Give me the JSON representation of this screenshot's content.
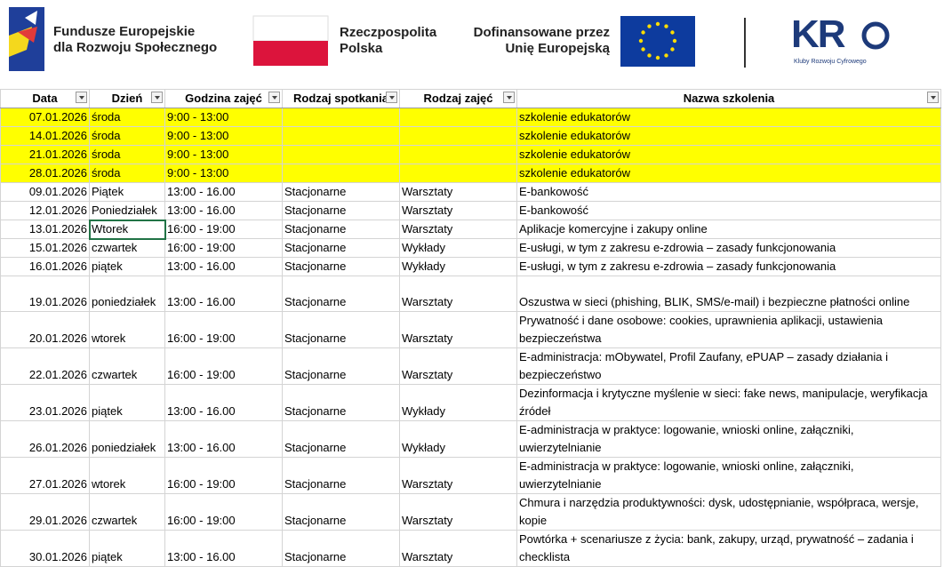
{
  "header": {
    "logos": [
      {
        "lines": [
          "Fundusze Europejskie",
          "dla Rozwoju Społecznego"
        ]
      },
      {
        "lines": [
          "Rzeczpospolita",
          "Polska"
        ]
      },
      {
        "lines": [
          "Dofinansowane przez",
          "Unię Europejską"
        ]
      },
      {
        "mark": "KR",
        "lines": [
          "Kluby Rozwoju Cyfrowego"
        ]
      }
    ]
  },
  "table": {
    "columns": [
      "Data",
      "Dzień",
      "Godzina zajęć",
      "Rodzaj spotkania",
      "Rodzaj zajęć",
      "Nazwa szkolenia"
    ],
    "highlight_color": "#ffff00",
    "highlighted_rows": [
      0,
      1,
      2,
      3
    ],
    "rows": [
      [
        "07.01.2026",
        "środa",
        "9:00 - 13:00",
        "",
        "",
        "szkolenie edukatorów"
      ],
      [
        "14.01.2026",
        "środa",
        "9:00 - 13:00",
        "",
        "",
        "szkolenie edukatorów"
      ],
      [
        "21.01.2026",
        "środa",
        "9:00 - 13:00",
        "",
        "",
        "szkolenie edukatorów"
      ],
      [
        "28.01.2026",
        "środa",
        "9:00 - 13:00",
        "",
        "",
        "szkolenie edukatorów"
      ],
      [
        "09.01.2026",
        "Piątek",
        "13:00 - 16.00",
        "Stacjonarne",
        "Warsztaty",
        "E-bankowość"
      ],
      [
        "12.01.2026",
        "Poniedziałek",
        "13:00 - 16.00",
        "Stacjonarne",
        "Warsztaty",
        "E-bankowość"
      ],
      [
        "13.01.2026",
        "Wtorek",
        "16:00 - 19:00",
        "Stacjonarne",
        "Warsztaty",
        "Aplikacje komercyjne i zakupy online"
      ],
      [
        "15.01.2026",
        "czwartek",
        "16:00 - 19:00",
        "Stacjonarne",
        "Wykłady",
        "E-usługi, w tym z zakresu e-zdrowia – zasady funkcjonowania"
      ],
      [
        "16.01.2026",
        "piątek",
        "13:00 - 16.00",
        "Stacjonarne",
        "Wykłady",
        "E-usługi, w tym z zakresu e-zdrowia – zasady funkcjonowania"
      ],
      [
        "19.01.2026",
        "poniedziałek",
        "13:00 - 16.00",
        "Stacjonarne",
        "Warsztaty",
        "Oszustwa w sieci (phishing, BLIK, SMS/e-mail) i bezpieczne płatności online"
      ],
      [
        "20.01.2026",
        "wtorek",
        "16:00 - 19:00",
        "Stacjonarne",
        "Warsztaty",
        "Prywatność i dane osobowe: cookies, uprawnienia aplikacji, ustawienia bezpieczeństwa"
      ],
      [
        "22.01.2026",
        "czwartek",
        "16:00 - 19:00",
        "Stacjonarne",
        "Warsztaty",
        "E-administracja: mObywatel, Profil Zaufany, ePUAP – zasady działania i bezpieczeństwo"
      ],
      [
        "23.01.2026",
        "piątek",
        "13:00 - 16.00",
        "Stacjonarne",
        "Wykłady",
        "Dezinformacja i krytyczne myślenie w sieci: fake news, manipulacje, weryfikacja źródeł"
      ],
      [
        "26.01.2026",
        "poniedziałek",
        "13:00 - 16.00",
        "Stacjonarne",
        "Wykłady",
        "E-administracja w praktyce: logowanie, wnioski online, załączniki, uwierzytelnianie"
      ],
      [
        "27.01.2026",
        "wtorek",
        "16:00 - 19:00",
        "Stacjonarne",
        "Warsztaty",
        "E-administracja w praktyce: logowanie, wnioski online, załączniki, uwierzytelnianie"
      ],
      [
        "29.01.2026",
        "czwartek",
        "16:00 - 19:00",
        "Stacjonarne",
        "Warsztaty",
        "Chmura i narzędzia produktywności: dysk, udostępnianie, współpraca, wersje, kopie"
      ],
      [
        "30.01.2026",
        "piątek",
        "13:00 - 16.00",
        "Stacjonarne",
        "Warsztaty",
        "Powtórka + scenariusze z życia: bank, zakupy, urząd, prywatność – zadania i checklista"
      ]
    ]
  }
}
